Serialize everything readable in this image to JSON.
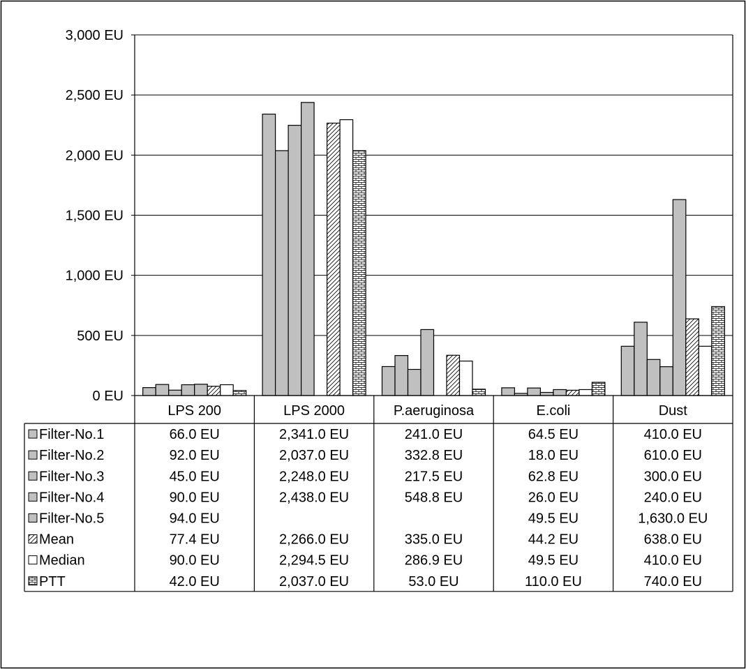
{
  "chart_data": {
    "type": "bar",
    "categories": [
      "LPS 200",
      "LPS 2000",
      "P.aeruginosa",
      "E.coli",
      "Dust"
    ],
    "unit": "EU",
    "ylim": [
      0,
      3000
    ],
    "yticks": [
      0,
      500,
      1000,
      1500,
      2000,
      2500,
      3000
    ],
    "ytick_labels": [
      "0 EU",
      "500 EU",
      "1,000 EU",
      "1,500 EU",
      "2,000 EU",
      "2,500 EU",
      "3,000 EU"
    ],
    "grid": true,
    "legend": "data-table",
    "series": [
      {
        "name": "Filter-No.1",
        "pattern": "solid",
        "color": "#c0c0c0",
        "values": [
          66.0,
          2341.0,
          241.0,
          64.5,
          410.0
        ],
        "labels": [
          "66.0 EU",
          "2,341.0 EU",
          "241.0 EU",
          "64.5 EU",
          "410.0 EU"
        ]
      },
      {
        "name": "Filter-No.2",
        "pattern": "solid",
        "color": "#c0c0c0",
        "values": [
          92.0,
          2037.0,
          332.8,
          18.0,
          610.0
        ],
        "labels": [
          "92.0 EU",
          "2,037.0 EU",
          "332.8 EU",
          "18.0 EU",
          "610.0 EU"
        ]
      },
      {
        "name": "Filter-No.3",
        "pattern": "solid",
        "color": "#c0c0c0",
        "values": [
          45.0,
          2248.0,
          217.5,
          62.8,
          300.0
        ],
        "labels": [
          "45.0 EU",
          "2,248.0 EU",
          "217.5 EU",
          "62.8 EU",
          "300.0 EU"
        ]
      },
      {
        "name": "Filter-No.4",
        "pattern": "solid",
        "color": "#c0c0c0",
        "values": [
          90.0,
          2438.0,
          548.8,
          26.0,
          240.0
        ],
        "labels": [
          "90.0 EU",
          "2,438.0 EU",
          "548.8 EU",
          "26.0 EU",
          "240.0 EU"
        ]
      },
      {
        "name": "Filter-No.5",
        "pattern": "solid",
        "color": "#c0c0c0",
        "values": [
          94.0,
          null,
          null,
          49.5,
          1630.0
        ],
        "labels": [
          "94.0 EU",
          "",
          "",
          "49.5 EU",
          "1,630.0 EU"
        ]
      },
      {
        "name": "Mean",
        "pattern": "diagonal",
        "color": "#ffffff",
        "values": [
          77.4,
          2266.0,
          335.0,
          44.2,
          638.0
        ],
        "labels": [
          "77.4 EU",
          "2,266.0 EU",
          "335.0 EU",
          "44.2 EU",
          "638.0 EU"
        ]
      },
      {
        "name": "Median",
        "pattern": "none",
        "color": "#ffffff",
        "values": [
          90.0,
          2294.5,
          286.9,
          49.5,
          410.0
        ],
        "labels": [
          "90.0 EU",
          "2,294.5 EU",
          "286.9 EU",
          "49.5 EU",
          "410.0 EU"
        ]
      },
      {
        "name": "PTT",
        "pattern": "brick",
        "color": "#ffffff",
        "values": [
          42.0,
          2037.0,
          53.0,
          110.0,
          740.0
        ],
        "labels": [
          "42.0 EU",
          "2,037.0 EU",
          "53.0 EU",
          "110.0 EU",
          "740.0 EU"
        ]
      }
    ]
  }
}
